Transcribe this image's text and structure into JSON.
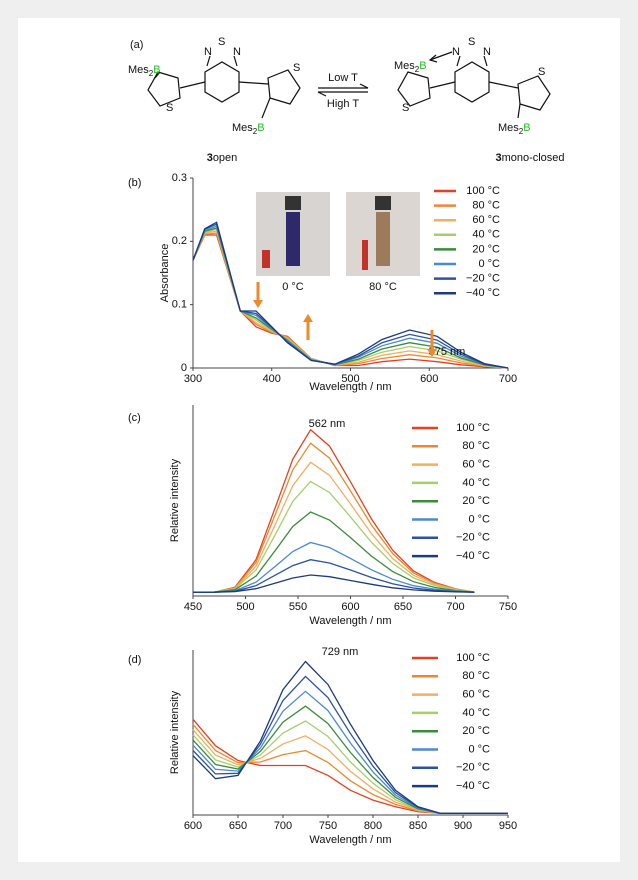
{
  "scheme": {
    "panel": "(a)",
    "left": {
      "top_group": [
        "Mes",
        "2",
        "B"
      ],
      "atoms": [
        "N",
        "S",
        "N",
        "S",
        "S"
      ],
      "bottom_group": [
        "Mes",
        "2",
        "B"
      ],
      "number": "3",
      "name": "open"
    },
    "right": {
      "top_group": [
        "Mes",
        "2",
        "B"
      ],
      "atoms": [
        "N",
        "S",
        "N",
        "S",
        "S"
      ],
      "bottom_group": [
        "Mes",
        "2",
        "B"
      ],
      "number": "3",
      "name": "mono-closed"
    },
    "forward": "Low T",
    "backward": "High T"
  },
  "chart_data": [
    {
      "type": "line",
      "panel": "(b)",
      "x_label": "Wavelength / nm",
      "y_label": "Absorbance",
      "x": [
        300,
        315,
        330,
        345,
        360,
        380,
        400,
        420,
        450,
        480,
        510,
        540,
        575,
        610,
        640,
        670,
        700
      ],
      "xlim": [
        300,
        700
      ],
      "xticks": [
        300,
        400,
        500,
        600,
        700
      ],
      "ylim": [
        0,
        0.3
      ],
      "yticks": [
        0,
        0.1,
        0.2,
        0.3
      ],
      "inset_labels": [
        "0 °C",
        "80 °C"
      ],
      "annotations": [
        "575 nm"
      ],
      "series": [
        {
          "name": "100 °C",
          "color": "#e8401c",
          "values": [
            0.17,
            0.21,
            0.21,
            0.15,
            0.09,
            0.065,
            0.055,
            0.05,
            0.015,
            0.004,
            0.004,
            0.01,
            0.014,
            0.01,
            0.005,
            0.002,
            0
          ]
        },
        {
          "name": "80 °C",
          "color": "#f0872e",
          "values": [
            0.17,
            0.211,
            0.213,
            0.151,
            0.09,
            0.069,
            0.056,
            0.049,
            0.015,
            0.004,
            0.007,
            0.015,
            0.021,
            0.016,
            0.008,
            0.003,
            0
          ]
        },
        {
          "name": "60 °C",
          "color": "#f3ae62",
          "values": [
            0.17,
            0.213,
            0.216,
            0.153,
            0.09,
            0.072,
            0.058,
            0.047,
            0.014,
            0.005,
            0.009,
            0.02,
            0.027,
            0.021,
            0.011,
            0.003,
            0
          ]
        },
        {
          "name": "40 °C",
          "color": "#a6cf6c",
          "values": [
            0.17,
            0.214,
            0.219,
            0.154,
            0.09,
            0.076,
            0.059,
            0.046,
            0.014,
            0.005,
            0.012,
            0.025,
            0.034,
            0.027,
            0.014,
            0.004,
            0
          ]
        },
        {
          "name": "20 °C",
          "color": "#3a8c3a",
          "values": [
            0.17,
            0.216,
            0.221,
            0.156,
            0.09,
            0.079,
            0.061,
            0.044,
            0.013,
            0.005,
            0.014,
            0.03,
            0.04,
            0.033,
            0.016,
            0.005,
            0
          ]
        },
        {
          "name": "0 °C",
          "color": "#4a8ad0",
          "values": [
            0.17,
            0.217,
            0.224,
            0.157,
            0.09,
            0.083,
            0.062,
            0.043,
            0.013,
            0.005,
            0.017,
            0.035,
            0.047,
            0.039,
            0.019,
            0.006,
            0
          ]
        },
        {
          "name": "−20 °C",
          "color": "#2a52a6",
          "values": [
            0.17,
            0.219,
            0.227,
            0.159,
            0.09,
            0.086,
            0.064,
            0.041,
            0.012,
            0.006,
            0.019,
            0.04,
            0.053,
            0.044,
            0.022,
            0.006,
            0
          ]
        },
        {
          "name": "−40 °C",
          "color": "#1a3a82",
          "values": [
            0.17,
            0.22,
            0.23,
            0.16,
            0.09,
            0.09,
            0.065,
            0.04,
            0.012,
            0.006,
            0.022,
            0.045,
            0.06,
            0.05,
            0.025,
            0.007,
            0
          ]
        }
      ]
    },
    {
      "type": "line",
      "panel": "(c)",
      "x_label": "Wavelength / nm",
      "y_label": "Relative intensity",
      "x": [
        450,
        470,
        490,
        510,
        530,
        545,
        562,
        580,
        600,
        620,
        640,
        660,
        680,
        700,
        718
      ],
      "xlim": [
        450,
        750
      ],
      "xticks": [
        450,
        500,
        550,
        600,
        650,
        700,
        750
      ],
      "ylim": [
        0,
        1
      ],
      "annotations": [
        "562 nm"
      ],
      "series": [
        {
          "name": "100 °C",
          "color": "#e8401c",
          "values": [
            0.02,
            0.02,
            0.046,
            0.19,
            0.488,
            0.717,
            0.87,
            0.785,
            0.598,
            0.403,
            0.241,
            0.131,
            0.071,
            0.037,
            0.02
          ]
        },
        {
          "name": "80 °C",
          "color": "#f0872e",
          "values": [
            0.02,
            0.02,
            0.043,
            0.176,
            0.449,
            0.66,
            0.8,
            0.722,
            0.55,
            0.371,
            0.223,
            0.121,
            0.067,
            0.036,
            0.02
          ]
        },
        {
          "name": "60 °C",
          "color": "#f3ae62",
          "values": [
            0.02,
            0.02,
            0.04,
            0.156,
            0.394,
            0.578,
            0.7,
            0.632,
            0.482,
            0.326,
            0.197,
            0.108,
            0.061,
            0.034,
            0.02
          ]
        },
        {
          "name": "40 °C",
          "color": "#a6cf6c",
          "values": [
            0.02,
            0.02,
            0.037,
            0.136,
            0.339,
            0.496,
            0.6,
            0.542,
            0.414,
            0.281,
            0.171,
            0.095,
            0.055,
            0.032,
            0.02
          ]
        },
        {
          "name": "20 °C",
          "color": "#3a8c3a",
          "values": [
            0.02,
            0.02,
            0.033,
            0.104,
            0.251,
            0.364,
            0.44,
            0.398,
            0.306,
            0.209,
            0.129,
            0.075,
            0.045,
            0.028,
            0.02
          ]
        },
        {
          "name": "0 °C",
          "color": "#4a8ad0",
          "values": [
            0.02,
            0.02,
            0.028,
            0.072,
            0.163,
            0.233,
            0.28,
            0.254,
            0.197,
            0.137,
            0.088,
            0.054,
            0.036,
            0.025,
            0.02
          ]
        },
        {
          "name": "−20 °C",
          "color": "#2a52a6",
          "values": [
            0.02,
            0.02,
            0.025,
            0.054,
            0.114,
            0.159,
            0.19,
            0.173,
            0.136,
            0.097,
            0.064,
            0.042,
            0.03,
            0.023,
            0.02
          ]
        },
        {
          "name": "−40 °C",
          "color": "#1a3a82",
          "values": [
            0.02,
            0.02,
            0.023,
            0.038,
            0.07,
            0.094,
            0.11,
            0.101,
            0.081,
            0.061,
            0.043,
            0.032,
            0.025,
            0.022,
            0.02
          ]
        }
      ]
    },
    {
      "type": "line",
      "panel": "(d)",
      "x_label": "Wavelength / nm",
      "y_label": "Relative intensity",
      "x": [
        600,
        625,
        650,
        675,
        700,
        725,
        750,
        775,
        800,
        825,
        850,
        875,
        900,
        950
      ],
      "xlim": [
        600,
        950
      ],
      "xticks": [
        600,
        650,
        700,
        750,
        800,
        850,
        900,
        950
      ],
      "ylim": [
        0,
        1
      ],
      "annotations": [
        "729 nm"
      ],
      "series": [
        {
          "name": "100 °C",
          "color": "#e8401c",
          "values": [
            0.58,
            0.42,
            0.33,
            0.3,
            0.3,
            0.3,
            0.24,
            0.15,
            0.09,
            0.05,
            0.02,
            0.01,
            0.01,
            0.01
          ]
        },
        {
          "name": "80 °C",
          "color": "#f0872e",
          "values": [
            0.549,
            0.391,
            0.317,
            0.321,
            0.366,
            0.39,
            0.319,
            0.207,
            0.124,
            0.064,
            0.024,
            0.01,
            0.01,
            0.01
          ]
        },
        {
          "name": "60 °C",
          "color": "#f3ae62",
          "values": [
            0.517,
            0.363,
            0.304,
            0.343,
            0.431,
            0.48,
            0.397,
            0.264,
            0.159,
            0.079,
            0.029,
            0.01,
            0.01,
            0.01
          ]
        },
        {
          "name": "40 °C",
          "color": "#a6cf6c",
          "values": [
            0.486,
            0.334,
            0.291,
            0.364,
            0.497,
            0.57,
            0.476,
            0.321,
            0.193,
            0.093,
            0.033,
            0.01,
            0.01,
            0.01
          ]
        },
        {
          "name": "20 °C",
          "color": "#3a8c3a",
          "values": [
            0.454,
            0.306,
            0.279,
            0.386,
            0.563,
            0.66,
            0.554,
            0.379,
            0.227,
            0.107,
            0.037,
            0.01,
            0.01,
            0.01
          ]
        },
        {
          "name": "0 °C",
          "color": "#4a8ad0",
          "values": [
            0.423,
            0.277,
            0.266,
            0.407,
            0.629,
            0.75,
            0.633,
            0.436,
            0.261,
            0.121,
            0.041,
            0.01,
            0.01,
            0.01
          ]
        },
        {
          "name": "−20 °C",
          "color": "#2a52a6",
          "values": [
            0.391,
            0.249,
            0.253,
            0.429,
            0.694,
            0.84,
            0.711,
            0.493,
            0.296,
            0.136,
            0.046,
            0.01,
            0.01,
            0.01
          ]
        },
        {
          "name": "−40 °C",
          "color": "#1a3a82",
          "values": [
            0.36,
            0.22,
            0.24,
            0.45,
            0.76,
            0.93,
            0.79,
            0.55,
            0.33,
            0.15,
            0.05,
            0.01,
            0.01,
            0.01
          ]
        }
      ]
    }
  ]
}
